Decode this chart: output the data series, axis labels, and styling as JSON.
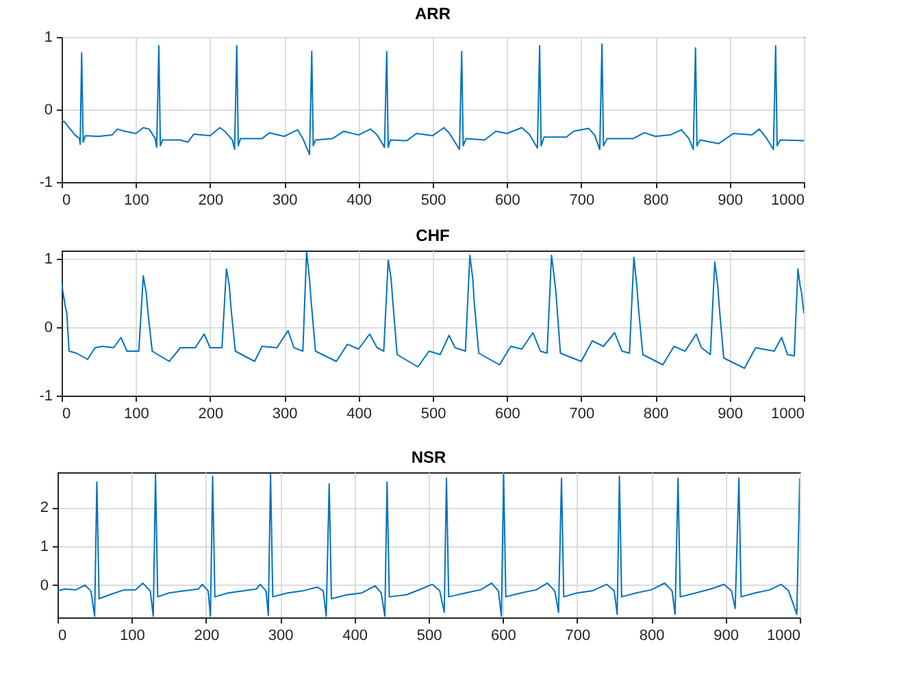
{
  "chart_data": [
    {
      "type": "line",
      "title": "ARR",
      "xlim": [
        0,
        1000
      ],
      "xticks": [
        0,
        100,
        200,
        300,
        400,
        500,
        600,
        700,
        800,
        900,
        1000
      ],
      "ylim": [
        -1,
        1
      ],
      "yticks": [
        -1,
        0,
        1
      ],
      "grid": true,
      "x": [
        0,
        5,
        10,
        18,
        24,
        25,
        27,
        29,
        32,
        50,
        68,
        75,
        85,
        100,
        110,
        118,
        126,
        128,
        131,
        133,
        136,
        160,
        170,
        178,
        200,
        213,
        220,
        230,
        233,
        236,
        238,
        241,
        270,
        280,
        300,
        318,
        325,
        334,
        337,
        339,
        342,
        365,
        380,
        400,
        416,
        425,
        435,
        438,
        440,
        443,
        465,
        478,
        500,
        515,
        522,
        536,
        539,
        541,
        545,
        570,
        585,
        600,
        620,
        630,
        641,
        644,
        646,
        650,
        680,
        690,
        710,
        718,
        725,
        728,
        730,
        735,
        770,
        785,
        800,
        820,
        835,
        845,
        851,
        854,
        856,
        860,
        885,
        905,
        930,
        940,
        950,
        959,
        962,
        964,
        968,
        1000
      ],
      "series": [
        {
          "color": "#0072bd",
          "values": [
            -0.15,
            -0.18,
            -0.25,
            -0.35,
            -0.4,
            -0.48,
            0.78,
            -0.45,
            -0.36,
            -0.37,
            -0.35,
            -0.27,
            -0.3,
            -0.33,
            -0.25,
            -0.27,
            -0.4,
            -0.52,
            0.88,
            -0.5,
            -0.42,
            -0.42,
            -0.45,
            -0.34,
            -0.36,
            -0.25,
            -0.3,
            -0.42,
            -0.55,
            0.88,
            -0.5,
            -0.4,
            -0.4,
            -0.32,
            -0.37,
            -0.28,
            -0.4,
            -0.62,
            0.8,
            -0.5,
            -0.42,
            -0.4,
            -0.3,
            -0.35,
            -0.27,
            -0.35,
            -0.52,
            0.8,
            -0.52,
            -0.42,
            -0.43,
            -0.33,
            -0.36,
            -0.25,
            -0.32,
            -0.55,
            0.8,
            -0.5,
            -0.4,
            -0.42,
            -0.3,
            -0.33,
            -0.25,
            -0.34,
            -0.53,
            0.88,
            -0.5,
            -0.38,
            -0.38,
            -0.3,
            -0.26,
            -0.35,
            -0.55,
            0.9,
            -0.5,
            -0.4,
            -0.4,
            -0.32,
            -0.37,
            -0.35,
            -0.28,
            -0.4,
            -0.55,
            0.85,
            -0.5,
            -0.42,
            -0.47,
            -0.33,
            -0.35,
            -0.27,
            -0.4,
            -0.55,
            0.88,
            -0.5,
            -0.42,
            -0.43
          ]
        }
      ]
    },
    {
      "type": "line",
      "title": "CHF",
      "xlim": [
        0,
        1000
      ],
      "xticks": [
        0,
        100,
        200,
        300,
        400,
        500,
        600,
        700,
        800,
        900,
        1000
      ],
      "ylim": [
        -1,
        1.12
      ],
      "yticks": [
        -1,
        0,
        1
      ],
      "grid": true,
      "x": [
        0,
        2,
        5,
        7,
        10,
        20,
        35,
        45,
        55,
        70,
        80,
        88,
        104,
        110,
        114,
        116,
        122,
        145,
        160,
        180,
        192,
        200,
        216,
        222,
        226,
        228,
        234,
        260,
        270,
        290,
        305,
        313,
        325,
        330,
        334,
        336,
        342,
        370,
        385,
        400,
        415,
        425,
        434,
        440,
        444,
        446,
        452,
        480,
        495,
        510,
        522,
        530,
        544,
        550,
        554,
        556,
        562,
        590,
        605,
        620,
        635,
        645,
        654,
        660,
        664,
        666,
        672,
        700,
        715,
        730,
        745,
        755,
        765,
        771,
        775,
        777,
        783,
        810,
        825,
        840,
        855,
        862,
        874,
        880,
        884,
        886,
        892,
        920,
        935,
        960,
        970,
        978,
        987,
        992,
        995,
        997,
        1000
      ],
      "series": [
        {
          "color": "#0072bd",
          "values": [
            0.65,
            0.5,
            0.3,
            0.2,
            -0.35,
            -0.38,
            -0.47,
            -0.3,
            -0.28,
            -0.3,
            -0.15,
            -0.35,
            -0.35,
            0.75,
            0.5,
            0.25,
            -0.35,
            -0.5,
            -0.3,
            -0.3,
            -0.1,
            -0.3,
            -0.3,
            0.85,
            0.6,
            0.3,
            -0.35,
            -0.5,
            -0.28,
            -0.3,
            -0.05,
            -0.3,
            -0.35,
            1.1,
            0.7,
            0.4,
            -0.35,
            -0.5,
            -0.25,
            -0.32,
            -0.1,
            -0.3,
            -0.35,
            0.98,
            0.7,
            0.4,
            -0.4,
            -0.58,
            -0.35,
            -0.4,
            -0.12,
            -0.3,
            -0.35,
            1.05,
            0.7,
            0.35,
            -0.38,
            -0.55,
            -0.28,
            -0.32,
            -0.08,
            -0.35,
            -0.38,
            1.05,
            0.7,
            0.5,
            -0.38,
            -0.5,
            -0.2,
            -0.28,
            -0.08,
            -0.35,
            -0.38,
            1.02,
            0.6,
            0.3,
            -0.4,
            -0.55,
            -0.28,
            -0.35,
            -0.1,
            -0.3,
            -0.4,
            0.95,
            0.6,
            0.3,
            -0.45,
            -0.6,
            -0.3,
            -0.35,
            -0.15,
            -0.4,
            -0.42,
            0.85,
            0.6,
            0.5,
            0.2
          ]
        }
      ]
    },
    {
      "type": "line",
      "title": "NSR",
      "xlim": [
        0,
        1000
      ],
      "xticks": [
        0,
        100,
        200,
        300,
        400,
        500,
        600,
        700,
        800,
        900,
        1000
      ],
      "ylim": [
        -0.83,
        2.9
      ],
      "yticks": [
        0,
        1,
        2
      ],
      "grid": true,
      "x": [
        0,
        10,
        25,
        37,
        45,
        50,
        53,
        56,
        70,
        90,
        105,
        115,
        125,
        129,
        132,
        135,
        150,
        170,
        190,
        195,
        203,
        206,
        209,
        212,
        230,
        250,
        268,
        273,
        281,
        284,
        287,
        290,
        310,
        330,
        350,
        358,
        362,
        366,
        369,
        390,
        410,
        428,
        436,
        441,
        444,
        447,
        470,
        490,
        505,
        515,
        521,
        524,
        527,
        550,
        570,
        585,
        594,
        598,
        601,
        604,
        625,
        645,
        660,
        670,
        675,
        679,
        682,
        700,
        720,
        740,
        750,
        754,
        757,
        760,
        780,
        800,
        818,
        828,
        832,
        836,
        839,
        860,
        880,
        898,
        908,
        913,
        918,
        921,
        940,
        960,
        975,
        985,
        996,
        1000
      ],
      "series": [
        {
          "color": "#0072bd",
          "values": [
            -0.15,
            -0.1,
            -0.12,
            0.0,
            -0.15,
            -0.8,
            2.65,
            -0.35,
            -0.25,
            -0.12,
            -0.12,
            0.05,
            -0.15,
            -0.8,
            2.85,
            -0.3,
            -0.2,
            -0.15,
            -0.1,
            0.02,
            -0.15,
            -0.8,
            2.8,
            -0.3,
            -0.2,
            -0.15,
            -0.1,
            0.02,
            -0.15,
            -0.78,
            2.85,
            -0.3,
            -0.2,
            -0.15,
            -0.05,
            -0.15,
            -0.8,
            2.6,
            -0.35,
            -0.25,
            -0.2,
            -0.02,
            -0.2,
            -0.8,
            2.65,
            -0.3,
            -0.25,
            -0.1,
            0.02,
            -0.15,
            -0.7,
            2.75,
            -0.3,
            -0.2,
            -0.12,
            0.05,
            -0.15,
            -0.8,
            2.85,
            -0.3,
            -0.2,
            -0.12,
            0.05,
            -0.15,
            -0.7,
            2.75,
            -0.3,
            -0.2,
            -0.15,
            0.02,
            -0.15,
            -0.75,
            2.8,
            -0.3,
            -0.2,
            -0.12,
            0.05,
            -0.15,
            -0.75,
            2.75,
            -0.3,
            -0.2,
            -0.1,
            0.02,
            -0.15,
            -0.6,
            2.75,
            -0.3,
            -0.2,
            -0.12,
            0.02,
            -0.15,
            -0.75,
            2.75
          ]
        }
      ]
    }
  ]
}
